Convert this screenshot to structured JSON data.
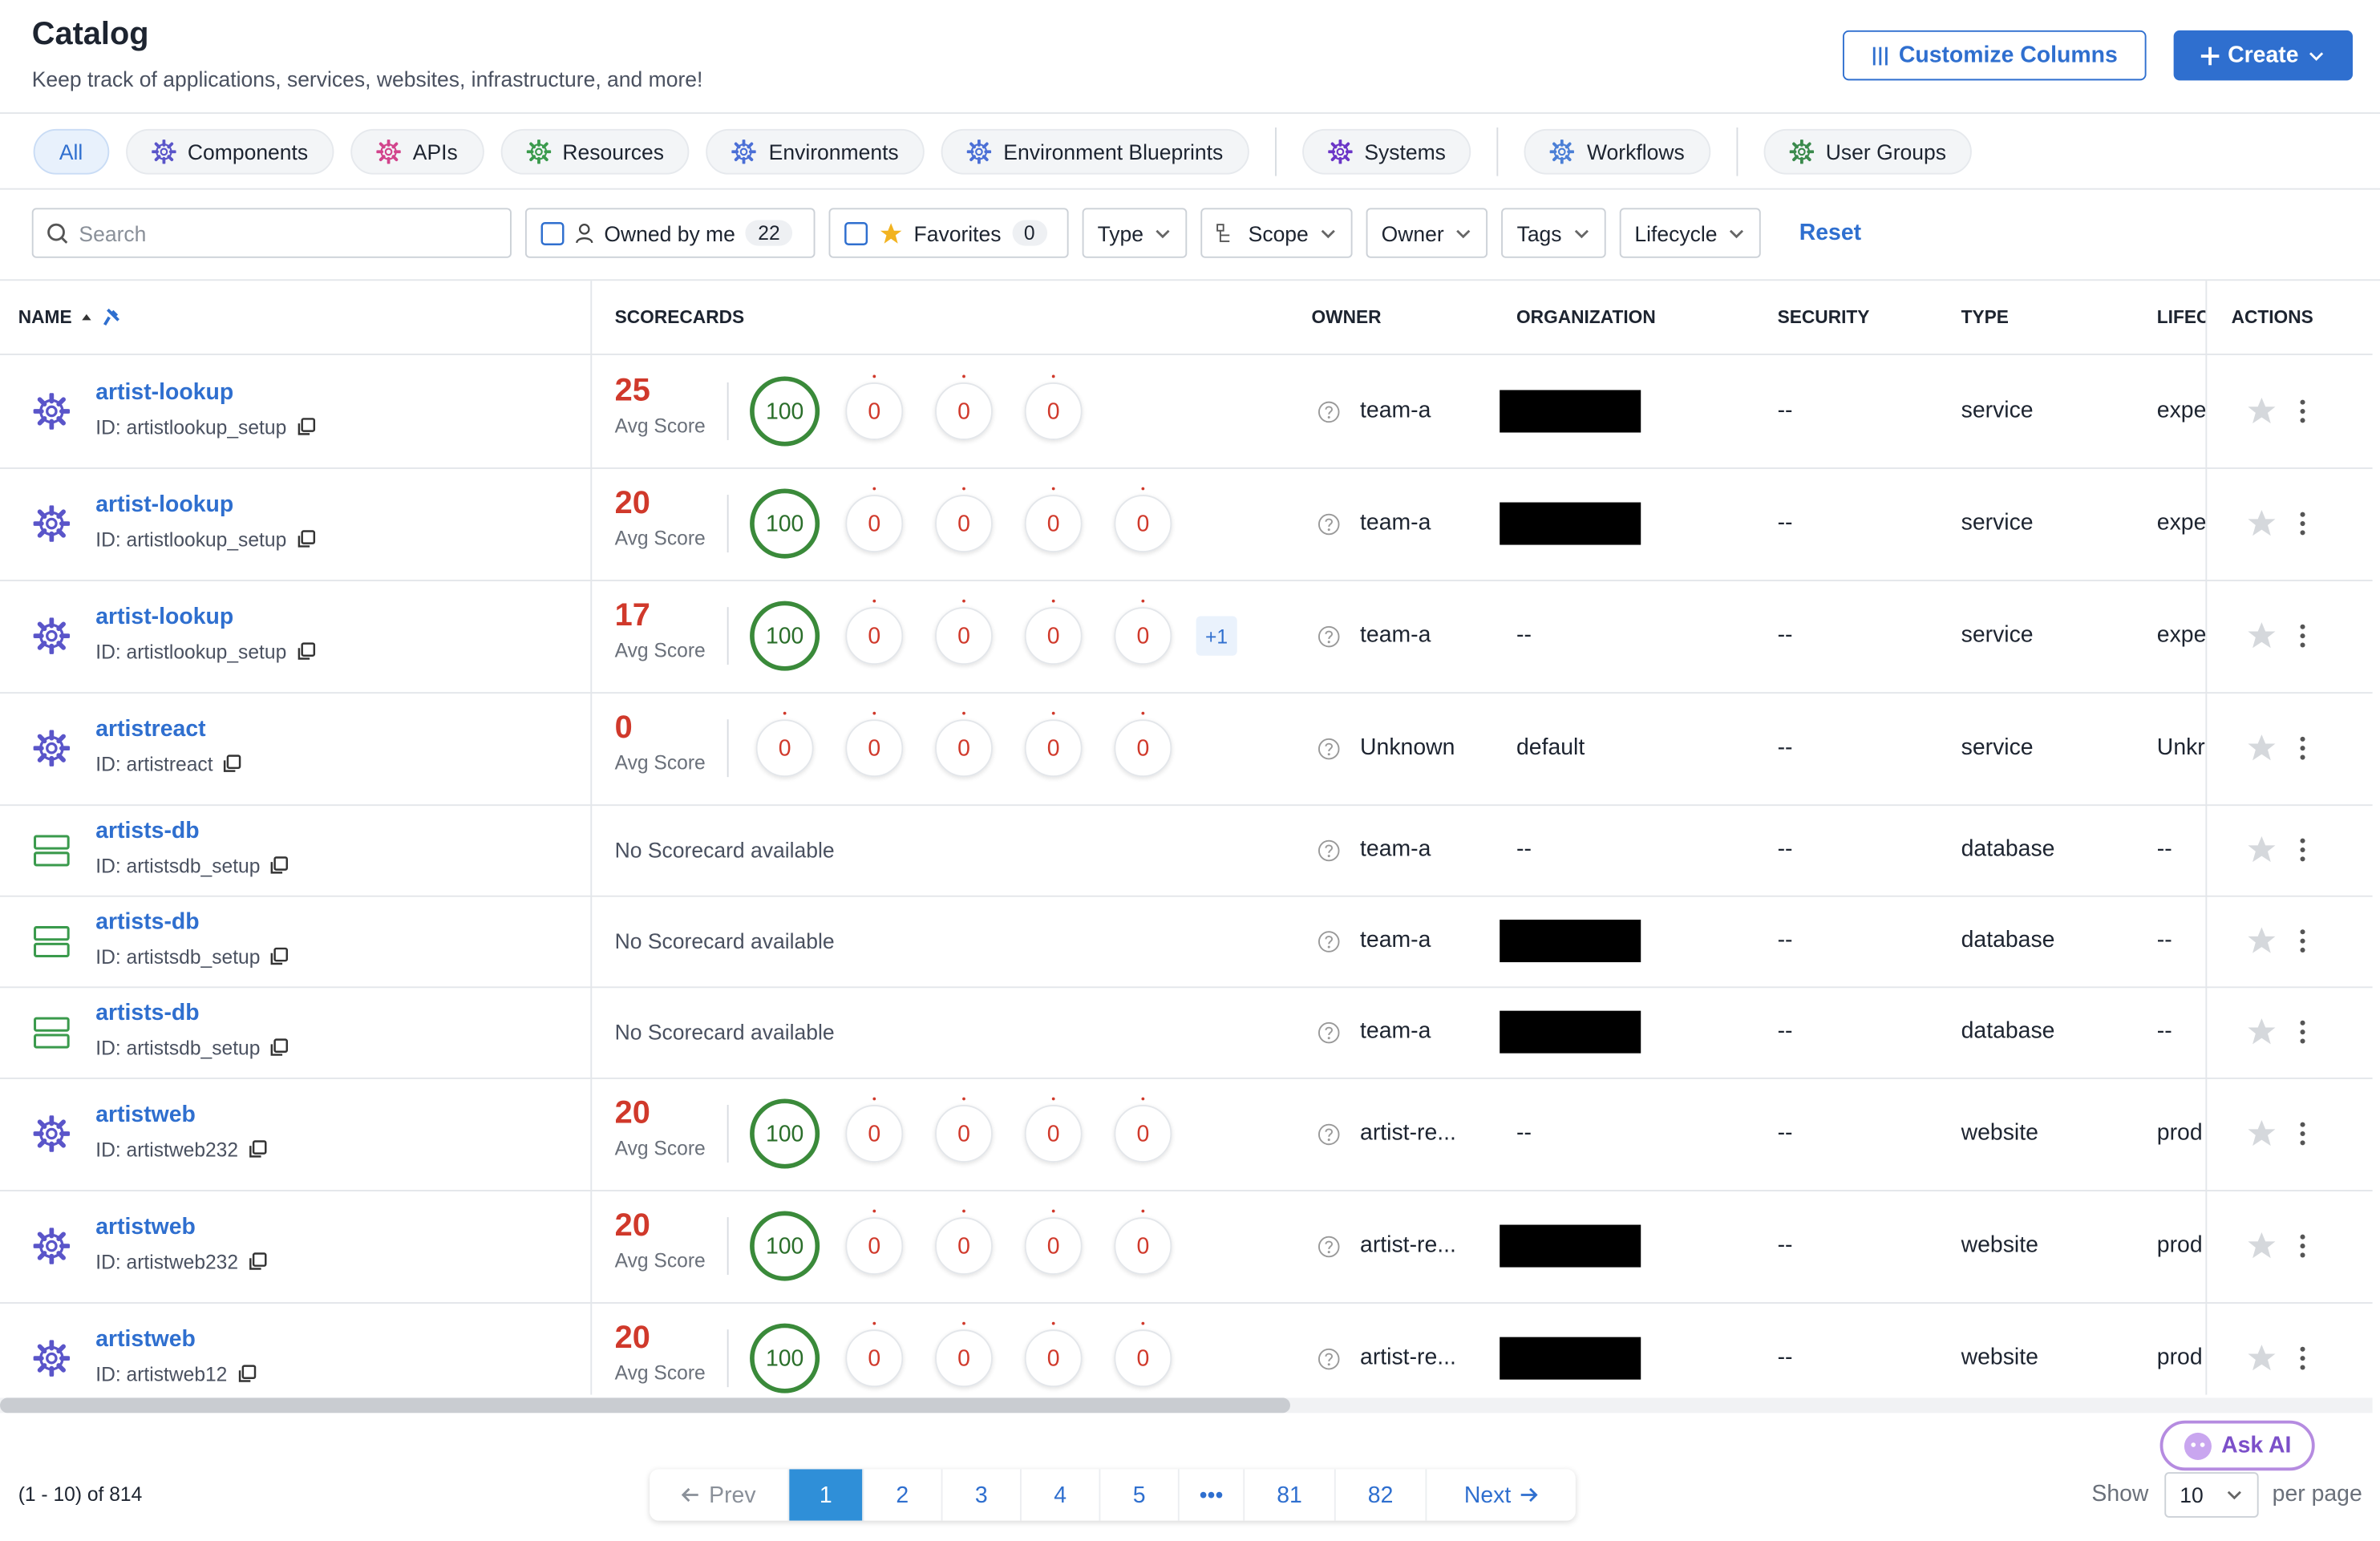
{
  "header": {
    "title": "Catalog",
    "subtitle": "Keep track of applications, services, websites, infrastructure, and more!",
    "customize_button": "Customize Columns",
    "create_button": "Create"
  },
  "tabs": [
    "All",
    "Components",
    "APIs",
    "Resources",
    "Environments",
    "Environment Blueprints",
    "Systems",
    "Workflows",
    "User Groups"
  ],
  "filters": {
    "search_placeholder": "Search",
    "owned_by_me": {
      "label": "Owned by me",
      "count": 22
    },
    "favorites": {
      "label": "Favorites",
      "count": 0
    },
    "dropdowns": [
      "Type",
      "Scope",
      "Owner",
      "Tags",
      "Lifecycle"
    ],
    "reset": "Reset"
  },
  "table": {
    "columns": [
      "NAME",
      "SCORECARDS",
      "OWNER",
      "ORGANIZATION",
      "SECURITY",
      "TYPE",
      "LIFEC",
      "ACTIONS"
    ],
    "rows": [
      {
        "name": "artist-lookup",
        "id": "ID: artistlookup_setup",
        "avg_score": 25,
        "avg_label": "Avg Score",
        "scores": [
          100,
          0,
          0,
          0
        ],
        "owner": "team-a",
        "organization": null,
        "security": "--",
        "type": "service",
        "lifecycle": "expe"
      },
      {
        "name": "artist-lookup",
        "id": "ID: artistlookup_setup",
        "avg_score": 20,
        "avg_label": "Avg Score",
        "scores": [
          100,
          0,
          0,
          0,
          0
        ],
        "owner": "team-a",
        "organization": null,
        "security": "--",
        "type": "service",
        "lifecycle": "expe"
      },
      {
        "name": "artist-lookup",
        "id": "ID: artistlookup_setup",
        "avg_score": 17,
        "avg_label": "Avg Score",
        "scores": [
          100,
          0,
          0,
          0,
          0
        ],
        "more": "+1",
        "owner": "team-a",
        "organization": "--",
        "security": "--",
        "type": "service",
        "lifecycle": "expe"
      },
      {
        "name": "artistreact",
        "id": "ID: artistreact",
        "avg_score": 0,
        "avg_label": "Avg Score",
        "scores": [
          0,
          0,
          0,
          0,
          0
        ],
        "owner": "Unknown",
        "organization": "default",
        "security": "--",
        "type": "service",
        "lifecycle": "Unkr"
      },
      {
        "name": "artists-db",
        "id": "ID: artistsdb_setup",
        "no_scorecard": "No Scorecard available",
        "owner": "team-a",
        "organization": "--",
        "security": "--",
        "type": "database",
        "lifecycle": "--"
      },
      {
        "name": "artists-db",
        "id": "ID: artistsdb_setup",
        "no_scorecard": "No Scorecard available",
        "owner": "team-a",
        "organization": null,
        "security": "--",
        "type": "database",
        "lifecycle": "--"
      },
      {
        "name": "artists-db",
        "id": "ID: artistsdb_setup",
        "no_scorecard": "No Scorecard available",
        "owner": "team-a",
        "organization": null,
        "security": "--",
        "type": "database",
        "lifecycle": "--"
      },
      {
        "name": "artistweb",
        "id": "ID: artistweb232",
        "avg_score": 20,
        "avg_label": "Avg Score",
        "scores": [
          100,
          0,
          0,
          0,
          0
        ],
        "owner": "artist-re...",
        "organization": "--",
        "security": "--",
        "type": "website",
        "lifecycle": "prod"
      },
      {
        "name": "artistweb",
        "id": "ID: artistweb232",
        "avg_score": 20,
        "avg_label": "Avg Score",
        "scores": [
          100,
          0,
          0,
          0,
          0
        ],
        "owner": "artist-re...",
        "organization": null,
        "security": "--",
        "type": "website",
        "lifecycle": "prod"
      },
      {
        "name": "artistweb",
        "id": "ID: artistweb12",
        "avg_score": 20,
        "avg_label": "Avg Score",
        "scores": [
          100,
          0,
          0,
          0,
          0
        ],
        "owner": "artist-re...",
        "organization": null,
        "security": "--",
        "type": "website",
        "lifecycle": "prod"
      }
    ]
  },
  "pagination": {
    "range": "(1 - 10) of 814",
    "prev": "Prev",
    "pages": [
      1,
      2,
      3,
      4,
      5,
      "•••",
      81,
      82
    ],
    "next": "Next",
    "show": "Show",
    "per_page": 10,
    "per_page_label": "per page"
  },
  "ask_ai": "Ask AI"
}
